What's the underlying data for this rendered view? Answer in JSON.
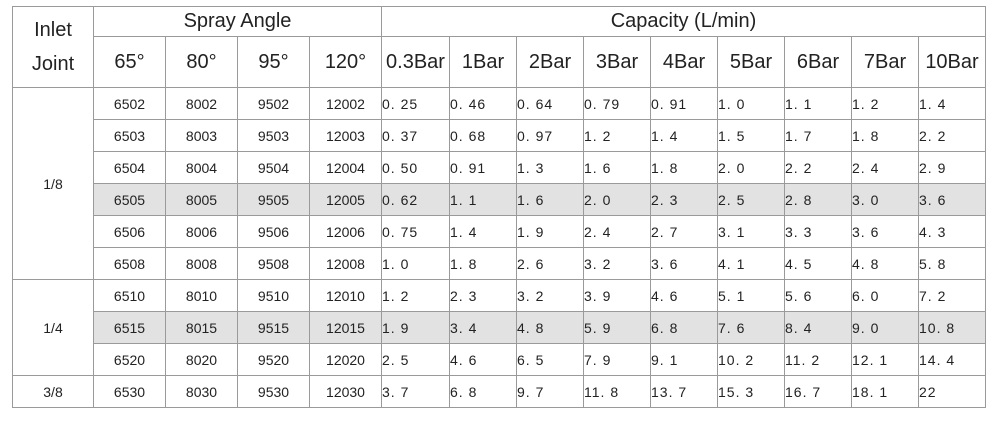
{
  "header": {
    "inlet_label_1": "Inlet",
    "inlet_label_2": "Joint",
    "spray_angle_label": "Spray Angle",
    "capacity_label": "Capacity (L/min)",
    "angles": [
      "65°",
      "80°",
      "95°",
      "120°"
    ],
    "pressures": [
      "0.3Bar",
      "1Bar",
      "2Bar",
      "3Bar",
      "4Bar",
      "5Bar",
      "6Bar",
      "7Bar",
      "10Bar"
    ]
  },
  "groups": [
    {
      "joint": "1/8",
      "rows": [
        {
          "models": [
            "6502",
            "8002",
            "9502",
            "12002"
          ],
          "capacity": [
            "0. 25",
            "0. 46",
            "0. 64",
            "0. 79",
            "0. 91",
            "1. 0",
            "1. 1",
            "1. 2",
            "1. 4"
          ],
          "highlighted": false
        },
        {
          "models": [
            "6503",
            "8003",
            "9503",
            "12003"
          ],
          "capacity": [
            "0. 37",
            "0. 68",
            "0. 97",
            "1. 2",
            "1. 4",
            "1. 5",
            "1. 7",
            "1. 8",
            "2. 2"
          ],
          "highlighted": false
        },
        {
          "models": [
            "6504",
            "8004",
            "9504",
            "12004"
          ],
          "capacity": [
            "0. 50",
            "0. 91",
            "1. 3",
            "1. 6",
            "1. 8",
            "2. 0",
            "2. 2",
            "2. 4",
            "2. 9"
          ],
          "highlighted": false
        },
        {
          "models": [
            "6505",
            "8005",
            "9505",
            "12005"
          ],
          "capacity": [
            "0. 62",
            "1. 1",
            "1. 6",
            "2. 0",
            "2. 3",
            "2. 5",
            "2. 8",
            "3. 0",
            "3. 6"
          ],
          "highlighted": true
        },
        {
          "models": [
            "6506",
            "8006",
            "9506",
            "12006"
          ],
          "capacity": [
            "0. 75",
            "1. 4",
            "1. 9",
            "2. 4",
            "2. 7",
            "3. 1",
            "3. 3",
            "3. 6",
            "4. 3"
          ],
          "highlighted": false
        },
        {
          "models": [
            "6508",
            "8008",
            "9508",
            "12008"
          ],
          "capacity": [
            "1. 0",
            "1. 8",
            "2. 6",
            "3. 2",
            "3. 6",
            "4. 1",
            "4. 5",
            "4. 8",
            "5. 8"
          ],
          "highlighted": false
        }
      ]
    },
    {
      "joint": "1/4",
      "rows": [
        {
          "models": [
            "6510",
            "8010",
            "9510",
            "12010"
          ],
          "capacity": [
            "1. 2",
            "2. 3",
            "3. 2",
            "3. 9",
            "4. 6",
            "5. 1",
            "5. 6",
            "6. 0",
            "7. 2"
          ],
          "highlighted": false
        },
        {
          "models": [
            "6515",
            "8015",
            "9515",
            "12015"
          ],
          "capacity": [
            "1. 9",
            "3. 4",
            "4. 8",
            "5. 9",
            "6. 8",
            "7. 6",
            "8. 4",
            "9. 0",
            "10. 8"
          ],
          "highlighted": true
        },
        {
          "models": [
            "6520",
            "8020",
            "9520",
            "12020"
          ],
          "capacity": [
            "2. 5",
            "4. 6",
            "6. 5",
            "7. 9",
            "9. 1",
            "10. 2",
            "11. 2",
            "12. 1",
            "14. 4"
          ],
          "highlighted": false
        }
      ]
    },
    {
      "joint": "3/8",
      "rows": [
        {
          "models": [
            "6530",
            "8030",
            "9530",
            "12030"
          ],
          "capacity": [
            "3. 7",
            "6. 8",
            "9. 7",
            "11. 8",
            "13. 7",
            "15. 3",
            "16. 7",
            "18. 1",
            "22"
          ],
          "highlighted": false
        }
      ]
    }
  ],
  "colors": {
    "border": "#9a9a9a",
    "highlight_row": "#e2e2e2",
    "text": "#222222"
  }
}
